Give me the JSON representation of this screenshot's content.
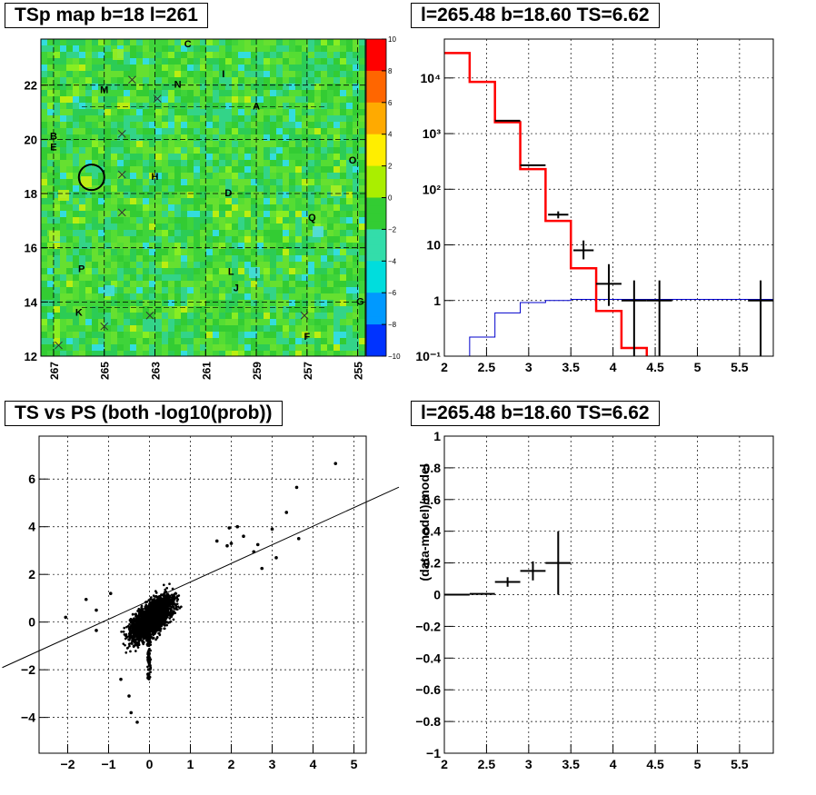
{
  "chart_data": [
    {
      "type": "heatmap",
      "title": "TSp map b=18 l=261",
      "x_ticks": [
        "267",
        "265",
        "263",
        "261",
        "259",
        "257",
        "255"
      ],
      "y_ticks": [
        "12",
        "14",
        "16",
        "18",
        "20",
        "22"
      ],
      "xlim": [
        267.5,
        254.7
      ],
      "ylim": [
        12,
        23.7
      ],
      "colorbar_ticks": [
        "10",
        "8",
        "6",
        "4",
        "2",
        "0",
        "−2",
        "−4",
        "−6",
        "−8",
        "−10"
      ],
      "zlim": [
        -10,
        10
      ],
      "source_labels": [
        {
          "text": "C",
          "l": 261.7,
          "b": 23.4
        },
        {
          "text": "I",
          "l": 260.3,
          "b": 22.3
        },
        {
          "text": "N",
          "l": 262.1,
          "b": 21.9
        },
        {
          "text": "M",
          "l": 265.0,
          "b": 21.7
        },
        {
          "text": "A",
          "l": 259.0,
          "b": 21.1
        },
        {
          "text": "B",
          "l": 267.0,
          "b": 20.0
        },
        {
          "text": "E",
          "l": 267.0,
          "b": 19.6
        },
        {
          "text": "O",
          "l": 255.2,
          "b": 19.1
        },
        {
          "text": "H",
          "l": 263.0,
          "b": 18.5
        },
        {
          "text": "D",
          "l": 260.1,
          "b": 17.9
        },
        {
          "text": "Q",
          "l": 256.8,
          "b": 17.0
        },
        {
          "text": "P",
          "l": 265.9,
          "b": 15.1
        },
        {
          "text": "L",
          "l": 260.0,
          "b": 15.0
        },
        {
          "text": "J",
          "l": 259.8,
          "b": 14.4
        },
        {
          "text": "G",
          "l": 254.9,
          "b": 13.9
        },
        {
          "text": "K",
          "l": 266.0,
          "b": 13.5
        },
        {
          "text": "F",
          "l": 257.0,
          "b": 12.6
        }
      ],
      "cross_markers": [
        {
          "l": 263.9,
          "b": 22.2
        },
        {
          "l": 262.9,
          "b": 21.5
        },
        {
          "l": 264.3,
          "b": 20.2
        },
        {
          "l": 264.3,
          "b": 18.7
        },
        {
          "l": 264.3,
          "b": 17.3
        },
        {
          "l": 265.0,
          "b": 13.1
        },
        {
          "l": 263.2,
          "b": 13.5
        },
        {
          "l": 266.8,
          "b": 12.4
        },
        {
          "l": 257.1,
          "b": 13.5
        }
      ],
      "circle": {
        "l": 265.5,
        "b": 18.6
      }
    },
    {
      "type": "line",
      "title": "l=265.48 b=18.60 TS=6.62",
      "yscale": "log",
      "xlim": [
        2,
        5.9
      ],
      "ylim": [
        0.1,
        50000
      ],
      "x_ticks": [
        "2",
        "2.5",
        "3",
        "3.5",
        "4",
        "4.5",
        "5",
        "5.5"
      ],
      "y_ticks": [
        "10⁻¹",
        "1",
        "10",
        "10²",
        "10³",
        "10⁴"
      ],
      "grid": true,
      "model_total_red": {
        "edges": [
          2,
          2.3,
          2.6,
          2.9,
          3.2,
          3.5,
          3.8,
          4.1,
          4.4
        ],
        "values": [
          28000,
          8500,
          1600,
          230,
          27,
          3.8,
          0.65,
          0.14
        ]
      },
      "model_component_blue": {
        "edges": [
          2.3,
          2.6,
          2.9,
          3.2,
          3.5,
          5.9
        ],
        "values": [
          0.22,
          0.6,
          0.92,
          1.0,
          1.05
        ]
      },
      "data_points": [
        {
          "x": 2.75,
          "xerr": 0.15,
          "y": 1700,
          "ylo": 1700,
          "yhi": 1700
        },
        {
          "x": 3.05,
          "xerr": 0.15,
          "y": 270,
          "ylo": 262,
          "yhi": 278
        },
        {
          "x": 3.35,
          "xerr": 0.12,
          "y": 35,
          "ylo": 30,
          "yhi": 40
        },
        {
          "x": 3.65,
          "xerr": 0.12,
          "y": 8,
          "ylo": 5.5,
          "yhi": 12
        },
        {
          "x": 3.95,
          "xerr": 0.15,
          "y": 2,
          "ylo": 0.8,
          "yhi": 4.5
        },
        {
          "x": 4.25,
          "xerr": 0.15,
          "y": 1,
          "ylo": 0.1,
          "yhi": 2.3
        },
        {
          "x": 4.55,
          "xerr": 0.15,
          "y": 1,
          "ylo": 0.1,
          "yhi": 2.3
        },
        {
          "x": 5.75,
          "xerr": 0.15,
          "y": 1,
          "ylo": 0.1,
          "yhi": 2.3
        }
      ]
    },
    {
      "type": "scatter",
      "title": "TS vs PS (both -log10(prob))",
      "xlim": [
        -2.7,
        5.3
      ],
      "ylim": [
        -5.5,
        7.8
      ],
      "x_ticks": [
        "−2",
        "−1",
        "0",
        "1",
        "2",
        "3",
        "4",
        "5"
      ],
      "y_ticks": [
        "−4",
        "−2",
        "0",
        "2",
        "4",
        "6"
      ],
      "grid": true,
      "fit_line": {
        "slope": 0.78,
        "intercept": 0.9
      },
      "outliers": [
        {
          "x": 4.55,
          "y": 6.65
        },
        {
          "x": 3.6,
          "y": 5.65
        },
        {
          "x": 3.35,
          "y": 4.6
        },
        {
          "x": 3.0,
          "y": 3.9
        },
        {
          "x": 3.65,
          "y": 3.5
        },
        {
          "x": 2.65,
          "y": 3.25
        },
        {
          "x": 2.3,
          "y": 3.6
        },
        {
          "x": 1.95,
          "y": 3.95
        },
        {
          "x": 2.15,
          "y": 4.0
        },
        {
          "x": 1.65,
          "y": 3.4
        },
        {
          "x": 2.0,
          "y": 3.3
        },
        {
          "x": 3.1,
          "y": 2.7
        },
        {
          "x": 2.75,
          "y": 2.25
        },
        {
          "x": -2.05,
          "y": 0.2
        },
        {
          "x": -1.55,
          "y": 0.95
        },
        {
          "x": -1.3,
          "y": -0.35
        },
        {
          "x": -0.45,
          "y": -3.8
        },
        {
          "x": -0.3,
          "y": -4.2
        },
        {
          "x": -0.5,
          "y": -3.1
        },
        {
          "x": -0.7,
          "y": -2.4
        },
        {
          "x": -1.3,
          "y": 0.5
        },
        {
          "x": -0.95,
          "y": 1.2
        },
        {
          "x": 1.9,
          "y": 3.2
        },
        {
          "x": 2.55,
          "y": 2.95
        }
      ]
    },
    {
      "type": "scatter",
      "title": "l=265.48 b=18.60 TS=6.62",
      "ylabel": "(data-model)/model",
      "xlim": [
        2,
        5.9
      ],
      "ylim": [
        -1,
        1
      ],
      "x_ticks": [
        "2",
        "2.5",
        "3",
        "3.5",
        "4",
        "4.5",
        "5",
        "5.5"
      ],
      "y_ticks": [
        "−1",
        "−0.8",
        "−0.6",
        "−0.4",
        "−0.2",
        "0",
        "0.2",
        "0.4",
        "0.6",
        "0.8",
        "1"
      ],
      "grid": true,
      "data_points": [
        {
          "x": 2.15,
          "xerr": 0.15,
          "y": 0.0,
          "yerr": 0.0
        },
        {
          "x": 2.45,
          "xerr": 0.15,
          "y": 0.005,
          "yerr": 0.005
        },
        {
          "x": 2.75,
          "xerr": 0.15,
          "y": 0.08,
          "yerr": 0.03
        },
        {
          "x": 3.05,
          "xerr": 0.15,
          "y": 0.15,
          "yerr": 0.06
        },
        {
          "x": 3.35,
          "xerr": 0.15,
          "y": 0.2,
          "yerr": 0.2
        }
      ]
    }
  ]
}
